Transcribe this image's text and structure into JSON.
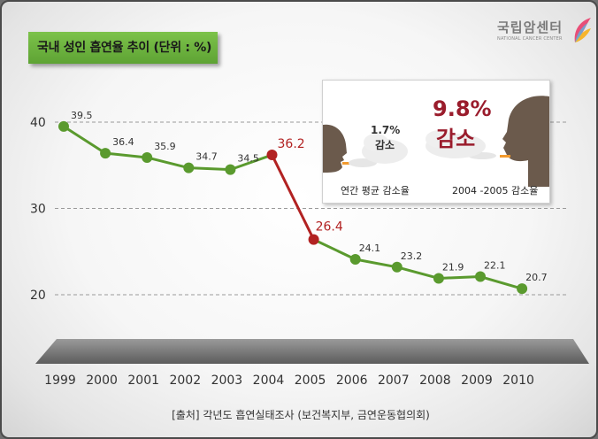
{
  "title": "국내 성인 흡연율 추이 (단위 : %)",
  "logo": {
    "name": "국립암센터",
    "sub": "NATIONAL CANCER CENTER"
  },
  "source": "[출처] 각년도 흡연실태조사 (보건복지부, 금연운동협의회)",
  "inset": {
    "left_value": "1.7%",
    "left_word": "감소",
    "left_caption": "연간 평균 감소율",
    "right_value": "9.8%",
    "right_word": "감소",
    "right_caption": "2004 -2005 감소율"
  },
  "colors": {
    "line": "#5a9a2e",
    "highlight": "#b22222",
    "title_bg": "#6ab43c"
  },
  "chart_data": {
    "type": "line",
    "x": [
      "1999",
      "2000",
      "2001",
      "2002",
      "2003",
      "2004",
      "2005",
      "2006",
      "2007",
      "2008",
      "2009",
      "2010"
    ],
    "values": [
      39.5,
      36.4,
      35.9,
      34.7,
      34.5,
      36.2,
      26.4,
      24.1,
      23.2,
      21.9,
      22.1,
      20.7
    ],
    "labels": [
      "39.5",
      "36.4",
      "35.9",
      "34.7",
      "34.5",
      "36.2",
      "26.4",
      "24.1",
      "23.2",
      "21.9",
      "22.1",
      "20.7"
    ],
    "highlight": [
      "2004",
      "2005"
    ],
    "y_ticks": [
      "40",
      "30",
      "20"
    ],
    "ylim": [
      20,
      40
    ],
    "grid": true
  }
}
